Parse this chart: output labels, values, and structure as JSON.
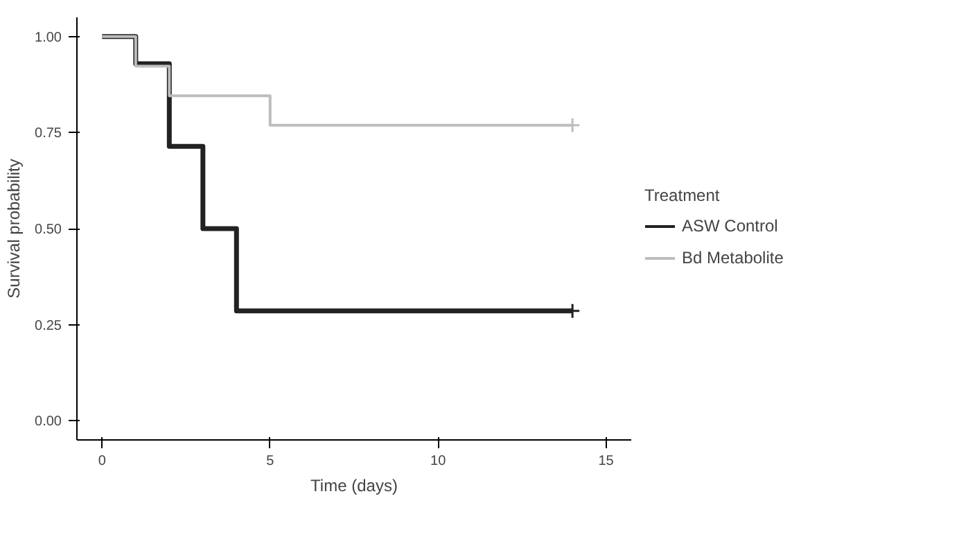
{
  "chart_data": {
    "type": "step",
    "xlabel": "Time (days)",
    "ylabel": "Survival probability",
    "legend_title": "Treatment",
    "xlim": [
      -0.75,
      15.75
    ],
    "ylim": [
      -0.05,
      1.05
    ],
    "xticks": [
      0,
      5,
      10,
      15
    ],
    "yticks": [
      {
        "value": 0,
        "label": "0.00"
      },
      {
        "value": 0.25,
        "label": "0.25"
      },
      {
        "value": 0.5,
        "label": "0.50"
      },
      {
        "value": 0.75,
        "label": "0.75"
      },
      {
        "value": 1,
        "label": "1.00"
      }
    ],
    "grid": false,
    "legend": "right",
    "marker": "none",
    "series": [
      {
        "name": "ASW Control",
        "color": "#222222",
        "x": [
          0,
          1,
          2,
          3,
          4,
          14
        ],
        "values": [
          1,
          0.929,
          0.714,
          0.5,
          0.286,
          0.286
        ]
      },
      {
        "name": "Bd Metabolite",
        "color": "#bdbdbd",
        "x": [
          0,
          1,
          2,
          5,
          14
        ],
        "values": [
          1,
          0.923,
          0.846,
          0.769,
          0.769
        ]
      },
      {
        "type": "scatter",
        "marker": "cross",
        "color": "#222222",
        "x": [
          14
        ],
        "values": [
          0.286
        ]
      },
      {
        "type": "scatter",
        "marker": "cross",
        "color": "#bdbdbd",
        "x": [
          14
        ],
        "values": [
          0.769
        ]
      }
    ]
  }
}
